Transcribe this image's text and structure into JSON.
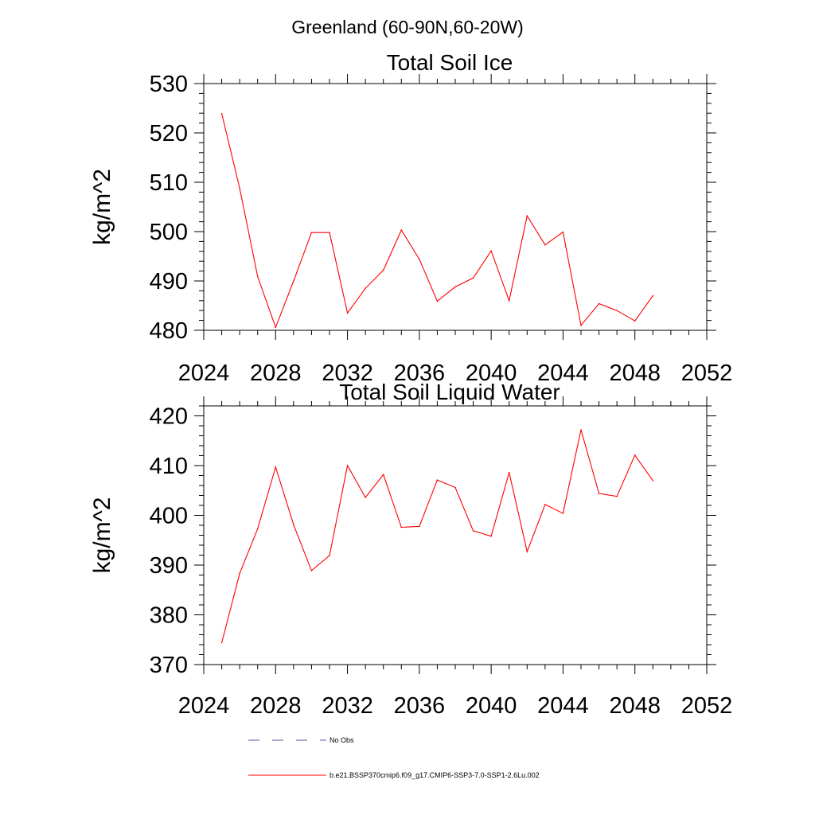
{
  "figure": {
    "title": "Greenland (60-90N,60-20W)"
  },
  "chart_data": [
    {
      "type": "line",
      "title": "Total Soil Ice",
      "xlabel": "",
      "ylabel": "kg/m^2",
      "xlim": [
        2024,
        2052
      ],
      "ylim": [
        480,
        530
      ],
      "xticks": [
        2024,
        2028,
        2032,
        2036,
        2040,
        2044,
        2048,
        2052
      ],
      "yticks": [
        480,
        490,
        500,
        510,
        520,
        530
      ],
      "grid": false,
      "x": [
        2025,
        2026,
        2027,
        2028,
        2029,
        2030,
        2031,
        2032,
        2033,
        2034,
        2035,
        2036,
        2037,
        2038,
        2039,
        2040,
        2041,
        2042,
        2043,
        2044,
        2045,
        2046,
        2047,
        2048,
        2049
      ],
      "series": [
        {
          "name": "b.e21.BSSP370cmip6.f09_g17.CMIP6-SSP3-7.0-SSP1-2.6Lu.002",
          "color": "#ff0000",
          "values": [
            523.9,
            508.8,
            490.9,
            480.6,
            490.0,
            499.8,
            499.8,
            483.5,
            488.5,
            492.2,
            500.3,
            494.4,
            485.9,
            488.8,
            490.6,
            496.1,
            486.0,
            503.2,
            497.3,
            499.9,
            481.0,
            485.4,
            484.0,
            481.9,
            487.0
          ]
        }
      ]
    },
    {
      "type": "line",
      "title": "Total Soil Liquid Water",
      "xlabel": "",
      "ylabel": "kg/m^2",
      "xlim": [
        2024,
        2052
      ],
      "ylim": [
        370,
        422
      ],
      "xticks": [
        2024,
        2028,
        2032,
        2036,
        2040,
        2044,
        2048,
        2052
      ],
      "yticks": [
        370,
        380,
        390,
        400,
        410,
        420
      ],
      "grid": false,
      "x": [
        2025,
        2026,
        2027,
        2028,
        2029,
        2030,
        2031,
        2032,
        2033,
        2034,
        2035,
        2036,
        2037,
        2038,
        2039,
        2040,
        2041,
        2042,
        2043,
        2044,
        2045,
        2046,
        2047,
        2048,
        2049
      ],
      "series": [
        {
          "name": "b.e21.BSSP370cmip6.f09_g17.CMIP6-SSP3-7.0-SSP1-2.6Lu.002",
          "color": "#ff0000",
          "values": [
            374.4,
            388.3,
            397.3,
            409.7,
            398.1,
            388.9,
            391.9,
            410.0,
            403.6,
            408.2,
            397.6,
            397.8,
            407.1,
            405.6,
            396.9,
            395.8,
            408.6,
            392.7,
            402.2,
            400.4,
            417.2,
            404.4,
            403.8,
            412.1,
            407.0
          ]
        }
      ]
    }
  ],
  "legend": {
    "position": "bottom",
    "items": [
      {
        "label": "No Obs",
        "color": "#5a5aa0",
        "style": "dashed"
      },
      {
        "label": "b.e21.BSSP370cmip6.f09_g17.CMIP6-SSP3-7.0-SSP1-2.6Lu.002",
        "color": "#ff0000",
        "style": "solid"
      }
    ]
  }
}
